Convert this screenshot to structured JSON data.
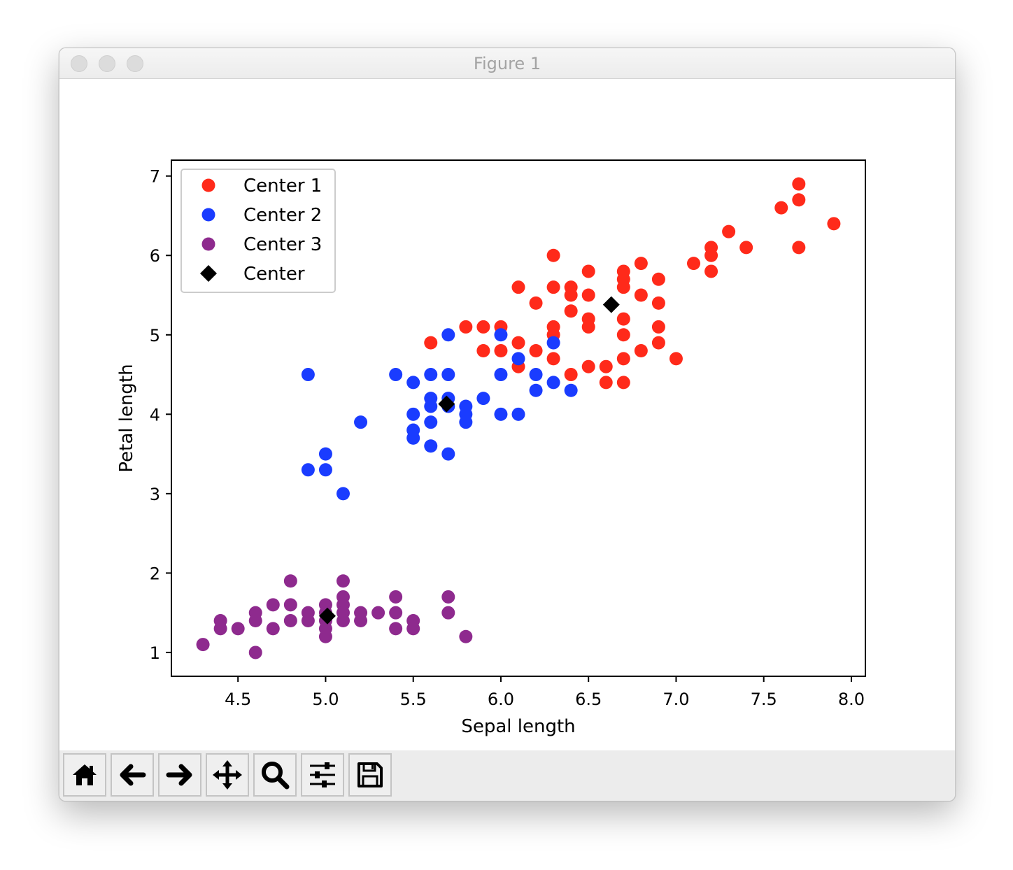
{
  "window": {
    "title": "Figure 1"
  },
  "toolbar": {
    "buttons": [
      {
        "icon": "home-icon",
        "name": "home-button"
      },
      {
        "icon": "back-arrow-icon",
        "name": "back-button"
      },
      {
        "icon": "forward-arrow-icon",
        "name": "forward-button"
      },
      {
        "icon": "pan-icon",
        "name": "pan-button"
      },
      {
        "icon": "zoom-icon",
        "name": "zoom-button"
      },
      {
        "icon": "sliders-icon",
        "name": "configure-subplots-button"
      },
      {
        "icon": "save-icon",
        "name": "save-button"
      }
    ]
  },
  "chart_data": {
    "type": "scatter",
    "title": "",
    "xlabel": "Sepal length",
    "ylabel": "Petal length",
    "xlim": [
      4.12,
      8.08
    ],
    "ylim": [
      0.7,
      7.2
    ],
    "xticks": [
      "4.5",
      "5.0",
      "5.5",
      "6.0",
      "6.5",
      "7.0",
      "7.5",
      "8.0"
    ],
    "yticks": [
      "1",
      "2",
      "3",
      "4",
      "5",
      "6",
      "7"
    ],
    "grid": false,
    "legend_position": "top-left",
    "series": [
      {
        "name": "Center 1",
        "color": "#ff2a1a",
        "marker": "circle",
        "points": [
          [
            7.7,
            6.9
          ],
          [
            7.7,
            6.7
          ],
          [
            7.6,
            6.6
          ],
          [
            7.9,
            6.4
          ],
          [
            7.3,
            6.3
          ],
          [
            7.2,
            6.1
          ],
          [
            7.4,
            6.1
          ],
          [
            7.7,
            6.1
          ],
          [
            6.3,
            6.0
          ],
          [
            7.2,
            6.0
          ],
          [
            7.1,
            5.9
          ],
          [
            6.8,
            5.9
          ],
          [
            6.5,
            5.8
          ],
          [
            6.7,
            5.8
          ],
          [
            7.2,
            5.8
          ],
          [
            6.9,
            5.7
          ],
          [
            6.7,
            5.7
          ],
          [
            6.1,
            5.6
          ],
          [
            6.3,
            5.6
          ],
          [
            6.4,
            5.6
          ],
          [
            6.7,
            5.6
          ],
          [
            6.4,
            5.5
          ],
          [
            6.5,
            5.5
          ],
          [
            6.8,
            5.5
          ],
          [
            6.2,
            5.4
          ],
          [
            6.9,
            5.4
          ],
          [
            6.4,
            5.3
          ],
          [
            6.5,
            5.2
          ],
          [
            6.7,
            5.2
          ],
          [
            5.8,
            5.1
          ],
          [
            5.9,
            5.1
          ],
          [
            6.0,
            5.1
          ],
          [
            6.3,
            5.1
          ],
          [
            6.5,
            5.1
          ],
          [
            6.9,
            5.1
          ],
          [
            6.3,
            5.0
          ],
          [
            6.7,
            5.0
          ],
          [
            5.6,
            4.9
          ],
          [
            6.1,
            4.9
          ],
          [
            6.9,
            4.9
          ],
          [
            5.9,
            4.8
          ],
          [
            6.0,
            4.8
          ],
          [
            6.2,
            4.8
          ],
          [
            6.8,
            4.8
          ],
          [
            6.3,
            4.7
          ],
          [
            6.7,
            4.7
          ],
          [
            7.0,
            4.7
          ],
          [
            6.1,
            4.6
          ],
          [
            6.5,
            4.6
          ],
          [
            6.6,
            4.6
          ],
          [
            6.4,
            4.5
          ],
          [
            6.6,
            4.4
          ],
          [
            6.7,
            4.4
          ]
        ]
      },
      {
        "name": "Center 2",
        "color": "#1a3cff",
        "marker": "circle",
        "points": [
          [
            5.7,
            5.0
          ],
          [
            6.0,
            5.0
          ],
          [
            6.3,
            4.9
          ],
          [
            6.1,
            4.7
          ],
          [
            4.9,
            4.5
          ],
          [
            5.4,
            4.5
          ],
          [
            5.6,
            4.5
          ],
          [
            5.7,
            4.5
          ],
          [
            6.0,
            4.5
          ],
          [
            6.2,
            4.5
          ],
          [
            5.5,
            4.4
          ],
          [
            6.3,
            4.4
          ],
          [
            6.2,
            4.3
          ],
          [
            6.4,
            4.3
          ],
          [
            5.6,
            4.2
          ],
          [
            5.7,
            4.2
          ],
          [
            5.9,
            4.2
          ],
          [
            5.6,
            4.1
          ],
          [
            5.7,
            4.1
          ],
          [
            5.8,
            4.1
          ],
          [
            5.5,
            4.0
          ],
          [
            5.8,
            4.0
          ],
          [
            6.0,
            4.0
          ],
          [
            6.1,
            4.0
          ],
          [
            5.2,
            3.9
          ],
          [
            5.6,
            3.9
          ],
          [
            5.8,
            3.9
          ],
          [
            5.5,
            3.8
          ],
          [
            5.5,
            3.7
          ],
          [
            5.6,
            3.6
          ],
          [
            5.0,
            3.5
          ],
          [
            5.7,
            3.5
          ],
          [
            4.9,
            3.3
          ],
          [
            5.0,
            3.3
          ],
          [
            5.1,
            3.0
          ]
        ]
      },
      {
        "name": "Center 3",
        "color": "#8e2a8e",
        "marker": "circle",
        "points": [
          [
            4.8,
            1.9
          ],
          [
            5.1,
            1.9
          ],
          [
            5.1,
            1.7
          ],
          [
            5.4,
            1.7
          ],
          [
            5.7,
            1.7
          ],
          [
            4.7,
            1.6
          ],
          [
            4.8,
            1.6
          ],
          [
            5.0,
            1.6
          ],
          [
            5.1,
            1.6
          ],
          [
            4.6,
            1.5
          ],
          [
            4.9,
            1.5
          ],
          [
            5.0,
            1.5
          ],
          [
            5.1,
            1.5
          ],
          [
            5.2,
            1.5
          ],
          [
            5.3,
            1.5
          ],
          [
            5.4,
            1.5
          ],
          [
            5.7,
            1.5
          ],
          [
            4.4,
            1.4
          ],
          [
            4.6,
            1.4
          ],
          [
            4.8,
            1.4
          ],
          [
            4.9,
            1.4
          ],
          [
            5.0,
            1.4
          ],
          [
            5.1,
            1.4
          ],
          [
            5.2,
            1.4
          ],
          [
            5.5,
            1.4
          ],
          [
            4.4,
            1.3
          ],
          [
            4.5,
            1.3
          ],
          [
            4.7,
            1.3
          ],
          [
            5.0,
            1.3
          ],
          [
            5.4,
            1.3
          ],
          [
            5.5,
            1.3
          ],
          [
            5.0,
            1.2
          ],
          [
            5.8,
            1.2
          ],
          [
            4.3,
            1.1
          ],
          [
            4.6,
            1.0
          ]
        ]
      },
      {
        "name": "Center",
        "color": "#000000",
        "marker": "diamond",
        "points": [
          [
            6.63,
            5.38
          ],
          [
            5.69,
            4.13
          ],
          [
            5.01,
            1.46
          ]
        ]
      }
    ]
  }
}
